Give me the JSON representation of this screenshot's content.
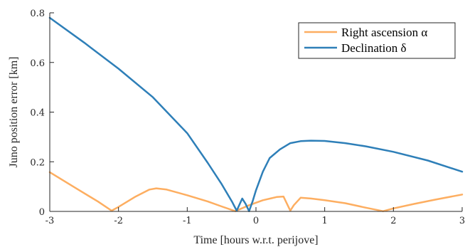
{
  "chart_data": {
    "type": "line",
    "title": "",
    "xlabel": "Time [hours w.r.t. perijove]",
    "ylabel": "Juno position error [km]",
    "xlim": [
      -3,
      3
    ],
    "ylim": [
      0,
      0.8
    ],
    "grid": false,
    "legend_position": "top-right",
    "x_ticks": [
      -3,
      -2,
      -1,
      0,
      1,
      2,
      3
    ],
    "x_tick_labels": [
      "-3",
      "-2",
      "-1",
      "0",
      "1",
      "2",
      "3"
    ],
    "y_ticks": [
      0,
      0.2,
      0.4,
      0.6,
      0.8
    ],
    "y_tick_labels": [
      "0",
      "0.2",
      "0.4",
      "0.6",
      "0.8"
    ],
    "series": [
      {
        "name": "Right ascension α",
        "color": "#fdae61",
        "x": [
          -3,
          -2.6,
          -2.3,
          -2.1,
          -2.0,
          -1.75,
          -1.55,
          -1.45,
          -1.3,
          -1.0,
          -0.7,
          -0.5,
          -0.3,
          -0.1,
          0.1,
          0.3,
          0.4,
          0.5,
          0.55,
          0.65,
          0.8,
          1.0,
          1.3,
          1.6,
          1.85,
          2.0,
          2.3,
          2.6,
          3.0
        ],
        "y": [
          0.158,
          0.09,
          0.04,
          0.003,
          0.018,
          0.06,
          0.088,
          0.093,
          0.088,
          0.065,
          0.04,
          0.02,
          0.001,
          0.025,
          0.045,
          0.058,
          0.06,
          0.003,
          0.025,
          0.055,
          0.052,
          0.045,
          0.033,
          0.015,
          0.001,
          0.012,
          0.03,
          0.047,
          0.068
        ]
      },
      {
        "name": "Declination δ",
        "color": "#2e7fb8",
        "x": [
          -3,
          -2.5,
          -2.0,
          -1.5,
          -1.0,
          -0.7,
          -0.5,
          -0.35,
          -0.28,
          -0.2,
          -0.15,
          -0.1,
          -0.05,
          0.0,
          0.1,
          0.2,
          0.35,
          0.5,
          0.65,
          0.8,
          1.0,
          1.3,
          1.6,
          2.0,
          2.5,
          3.0
        ],
        "y": [
          0.78,
          0.68,
          0.575,
          0.46,
          0.315,
          0.195,
          0.11,
          0.04,
          0.003,
          0.052,
          0.03,
          0.001,
          0.04,
          0.085,
          0.16,
          0.215,
          0.25,
          0.275,
          0.283,
          0.285,
          0.284,
          0.275,
          0.262,
          0.24,
          0.205,
          0.16
        ]
      }
    ]
  }
}
